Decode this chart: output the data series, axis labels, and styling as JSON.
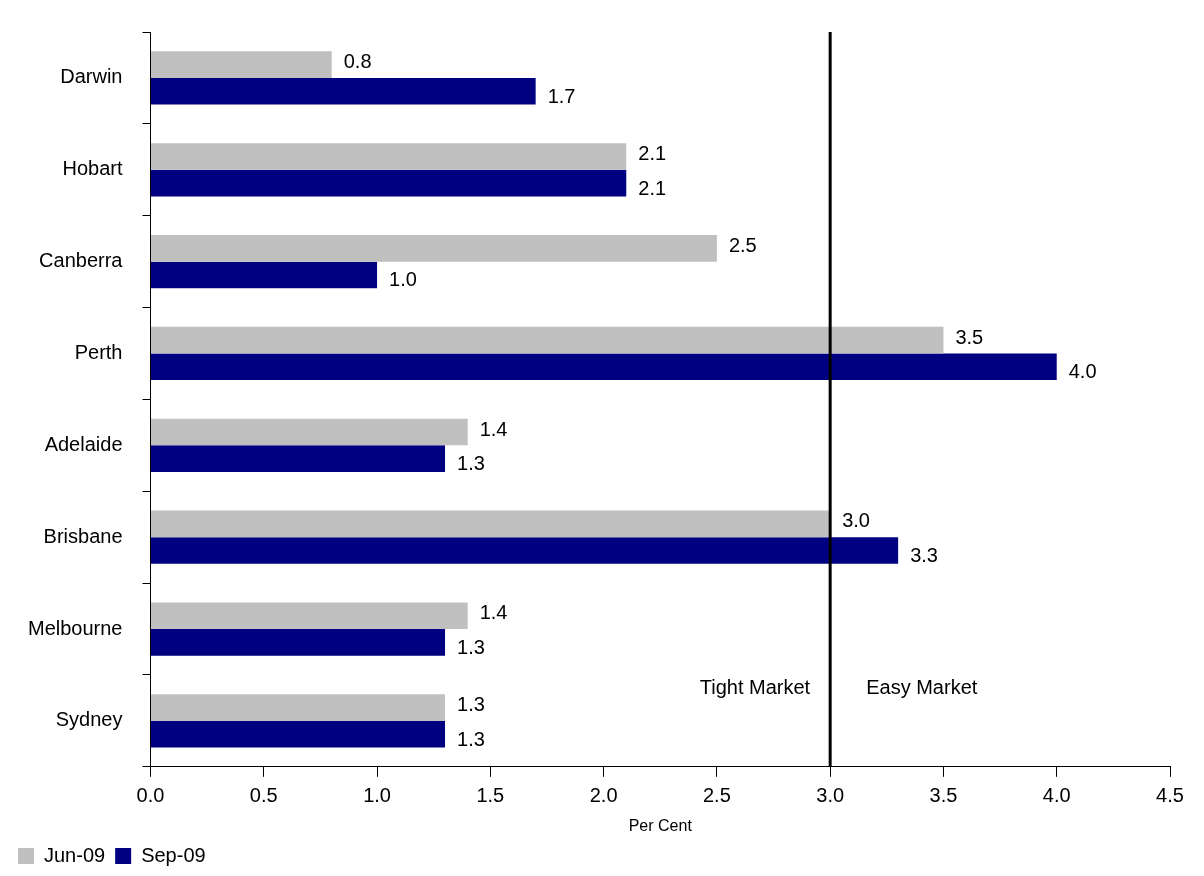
{
  "chart_data": {
    "type": "bar",
    "orientation": "horizontal",
    "xlabel": "Per Cent",
    "categories": [
      "Darwin",
      "Hobart",
      "Canberra",
      "Perth",
      "Adelaide",
      "Brisbane",
      "Melbourne",
      "Sydney"
    ],
    "series": [
      {
        "name": "Jun-09",
        "color": "#c0c0c0",
        "values": [
          0.8,
          2.1,
          2.5,
          3.5,
          1.4,
          3.0,
          1.4,
          1.3
        ],
        "value_labels": [
          "0.8",
          "2.1",
          "2.5",
          "3.5",
          "1.4",
          "3.0",
          "1.4",
          "1.3"
        ]
      },
      {
        "name": "Sep-09",
        "color": "#000080",
        "values": [
          1.7,
          2.1,
          1.0,
          4.0,
          1.3,
          3.3,
          1.3,
          1.3
        ],
        "value_labels": [
          "1.7",
          "2.1",
          "1.0",
          "4.0",
          "1.3",
          "3.3",
          "1.3",
          "1.3"
        ]
      }
    ],
    "xlim": [
      0,
      4.5
    ],
    "xticks": [
      {
        "value": 0,
        "label": "0.0"
      },
      {
        "value": 0.5,
        "label": "0.5"
      },
      {
        "value": 1,
        "label": "1.0"
      },
      {
        "value": 1.5,
        "label": "1.5"
      },
      {
        "value": 2,
        "label": "2.0"
      },
      {
        "value": 2.5,
        "label": "2.5"
      },
      {
        "value": 3,
        "label": "3.0"
      },
      {
        "value": 3.5,
        "label": "3.5"
      },
      {
        "value": 4,
        "label": "4.0"
      },
      {
        "value": 4.5,
        "label": "4.5"
      }
    ],
    "ref_lines": [
      {
        "axis": "x",
        "value": 3.0,
        "color": "#000000"
      }
    ],
    "annotations": [
      "Tight Market",
      "Easy Market"
    ],
    "grid": false,
    "legend": "bottom left"
  }
}
